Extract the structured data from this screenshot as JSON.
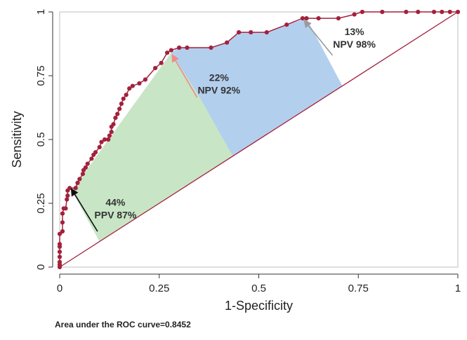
{
  "chart_data": {
    "type": "line",
    "title": "",
    "xlabel": "1-Specificity",
    "ylabel": "Sensitivity",
    "xlim": [
      0,
      1
    ],
    "ylim": [
      0,
      1
    ],
    "x_ticks": [
      "0",
      "0.25",
      "0.5",
      "0.75",
      "1"
    ],
    "y_ticks": [
      "0",
      "0.25",
      "0.5",
      "0.75",
      "1"
    ],
    "grid": false,
    "colors": {
      "curve": "#a3213c",
      "diagonal": "#a3213c",
      "green_region": "#c8e6c6",
      "blue_region": "#b3cfee",
      "frame": "#bfbfbf",
      "arrow_black": "#111111",
      "arrow_pink": "#f08a8a",
      "arrow_gray": "#9a9a9a"
    },
    "roc_points": [
      [
        0.0,
        0.0
      ],
      [
        0.0,
        0.01
      ],
      [
        0.0,
        0.02
      ],
      [
        0.0,
        0.04
      ],
      [
        0.0,
        0.06
      ],
      [
        0.0,
        0.08
      ],
      [
        0.0,
        0.09
      ],
      [
        0.0,
        0.13
      ],
      [
        0.007,
        0.14
      ],
      [
        0.007,
        0.175
      ],
      [
        0.007,
        0.21
      ],
      [
        0.01,
        0.23
      ],
      [
        0.015,
        0.23
      ],
      [
        0.018,
        0.265
      ],
      [
        0.02,
        0.28
      ],
      [
        0.02,
        0.3
      ],
      [
        0.025,
        0.31
      ],
      [
        0.04,
        0.31
      ],
      [
        0.045,
        0.33
      ],
      [
        0.05,
        0.345
      ],
      [
        0.058,
        0.365
      ],
      [
        0.06,
        0.38
      ],
      [
        0.065,
        0.39
      ],
      [
        0.07,
        0.405
      ],
      [
        0.08,
        0.425
      ],
      [
        0.085,
        0.44
      ],
      [
        0.09,
        0.45
      ],
      [
        0.1,
        0.47
      ],
      [
        0.105,
        0.49
      ],
      [
        0.113,
        0.5
      ],
      [
        0.122,
        0.5
      ],
      [
        0.125,
        0.515
      ],
      [
        0.13,
        0.53
      ],
      [
        0.13,
        0.55
      ],
      [
        0.135,
        0.56
      ],
      [
        0.14,
        0.585
      ],
      [
        0.145,
        0.6
      ],
      [
        0.15,
        0.62
      ],
      [
        0.155,
        0.64
      ],
      [
        0.16,
        0.66
      ],
      [
        0.167,
        0.675
      ],
      [
        0.175,
        0.7
      ],
      [
        0.183,
        0.71
      ],
      [
        0.2,
        0.72
      ],
      [
        0.215,
        0.735
      ],
      [
        0.24,
        0.78
      ],
      [
        0.255,
        0.8
      ],
      [
        0.27,
        0.84
      ],
      [
        0.28,
        0.85
      ],
      [
        0.3,
        0.86
      ],
      [
        0.32,
        0.86
      ],
      [
        0.38,
        0.86
      ],
      [
        0.42,
        0.88
      ],
      [
        0.45,
        0.92
      ],
      [
        0.48,
        0.92
      ],
      [
        0.52,
        0.92
      ],
      [
        0.57,
        0.95
      ],
      [
        0.61,
        0.975
      ],
      [
        0.62,
        0.975
      ],
      [
        0.65,
        0.975
      ],
      [
        0.7,
        0.975
      ],
      [
        0.74,
        0.99
      ],
      [
        0.76,
        1.0
      ],
      [
        0.81,
        1.0
      ],
      [
        0.87,
        1.0
      ],
      [
        0.9,
        1.0
      ],
      [
        0.94,
        1.0
      ],
      [
        0.96,
        1.0
      ],
      [
        0.98,
        1.0
      ],
      [
        1.0,
        1.0
      ]
    ],
    "regions": [
      {
        "color_key": "green_region",
        "polygon": [
          [
            0.03,
            0.3
          ],
          [
            0.28,
            0.84
          ],
          [
            0.3,
            0.86
          ],
          [
            0.38,
            0.86
          ],
          [
            0.435,
            0.435
          ],
          [
            0.1,
            0.1
          ]
        ]
      },
      {
        "color_key": "blue_region",
        "polygon": [
          [
            0.28,
            0.84
          ],
          [
            0.3,
            0.86
          ],
          [
            0.38,
            0.86
          ],
          [
            0.42,
            0.88
          ],
          [
            0.45,
            0.92
          ],
          [
            0.52,
            0.92
          ],
          [
            0.57,
            0.95
          ],
          [
            0.62,
            0.975
          ],
          [
            0.71,
            0.71
          ],
          [
            0.435,
            0.435
          ],
          [
            0.35,
            0.67
          ]
        ]
      }
    ],
    "annotations": [
      {
        "text_lines": [
          "44%",
          "PPV 87%"
        ],
        "at": [
          0.14,
          0.24
        ],
        "arrow_from": [
          0.095,
          0.14
        ],
        "arrow_to": [
          0.03,
          0.305
        ],
        "arrow_color_key": "arrow_black"
      },
      {
        "text_lines": [
          "22%",
          "NPV 92%"
        ],
        "at": [
          0.4,
          0.73
        ],
        "arrow_from": [
          0.345,
          0.665
        ],
        "arrow_to": [
          0.283,
          0.83
        ],
        "arrow_color_key": "arrow_pink"
      },
      {
        "text_lines": [
          "13%",
          "NPV 98%"
        ],
        "at": [
          0.74,
          0.91
        ],
        "arrow_from": [
          0.685,
          0.83
        ],
        "arrow_to": [
          0.615,
          0.965
        ],
        "arrow_color_key": "arrow_gray"
      }
    ]
  },
  "footnote": "Area under the ROC curve=0.8452"
}
